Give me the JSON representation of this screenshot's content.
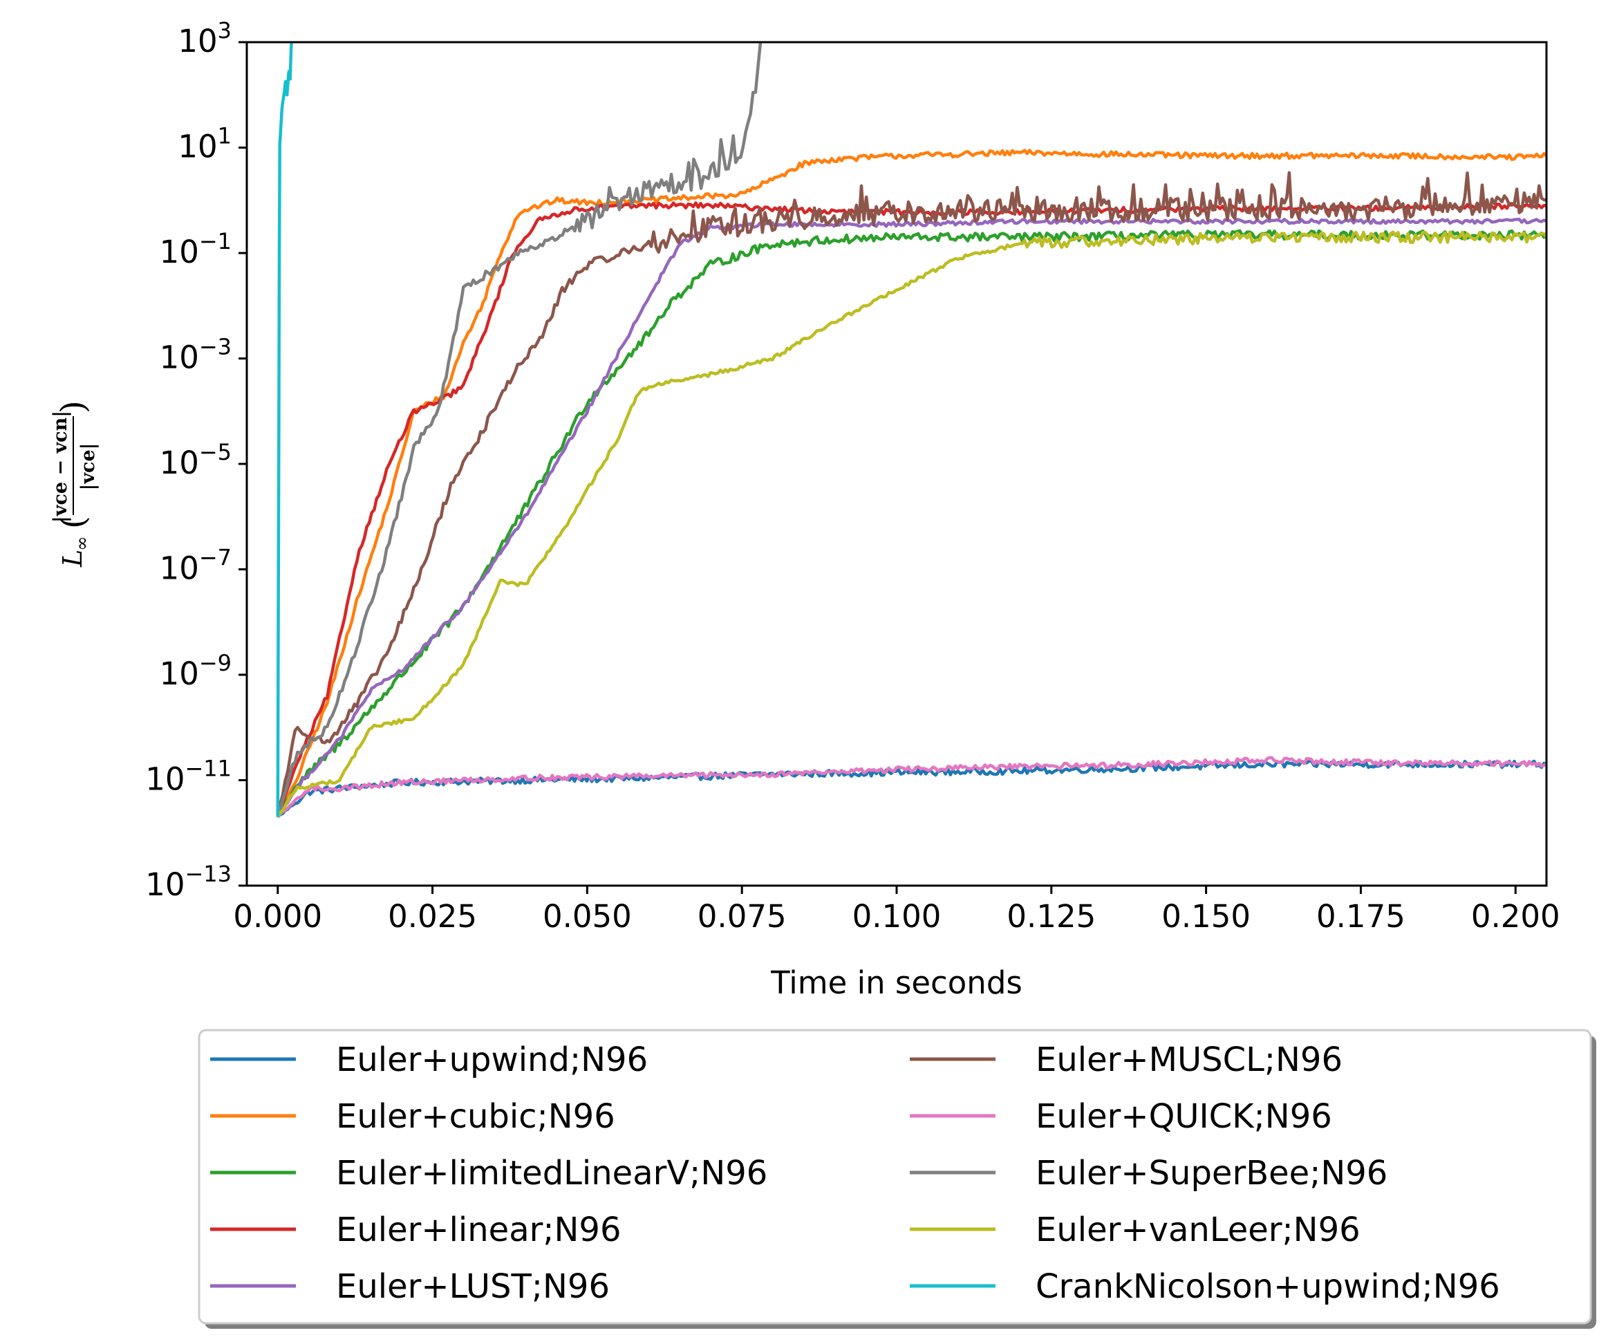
{
  "chart_data": {
    "type": "line",
    "xlabel": "Time in seconds",
    "ylabel": "L∞(|v_c^e − v_c^n| / |v_c^e|)",
    "ylabel_parts": {
      "main": "L",
      "sub": "∞",
      "lparen": "(",
      "numerator": "|vce − vcn|",
      "denominator": "|vce|",
      "rparen": ")"
    },
    "xlim": [
      -0.005,
      0.205
    ],
    "ylim_log10": [
      -13,
      3
    ],
    "yscale": "log",
    "grid": false,
    "legend_position": "below plot, two columns",
    "x_ticks": [
      "0.000",
      "0.025",
      "0.050",
      "0.075",
      "0.100",
      "0.125",
      "0.150",
      "0.175",
      "0.200"
    ],
    "x_tick_values": [
      0,
      0.025,
      0.05,
      0.075,
      0.1,
      0.125,
      0.15,
      0.175,
      0.2
    ],
    "y_ticks": [
      {
        "base": "10",
        "exp": "3",
        "value": 1000.0
      },
      {
        "base": "10",
        "exp": "1",
        "value": 10.0
      },
      {
        "base": "10",
        "exp": "−1",
        "value": 0.1
      },
      {
        "base": "10",
        "exp": "−3",
        "value": 0.001
      },
      {
        "base": "10",
        "exp": "−5",
        "value": 1e-05
      },
      {
        "base": "10",
        "exp": "−7",
        "value": 1e-07
      },
      {
        "base": "10",
        "exp": "−9",
        "value": 1e-09
      },
      {
        "base": "10",
        "exp": "−11",
        "value": 1e-11
      },
      {
        "base": "10",
        "exp": "−13",
        "value": 1e-13
      }
    ],
    "series": [
      {
        "name": "Euler+upwind;N96",
        "color": "#1f77b4",
        "noise": 0.06,
        "x": [
          0,
          0.005,
          0.01,
          0.02,
          0.04,
          0.06,
          0.08,
          0.1,
          0.12,
          0.14,
          0.16,
          0.18,
          0.2,
          0.205
        ],
        "y": [
          2e-12,
          6e-12,
          7e-12,
          9e-12,
          1e-11,
          1.1e-11,
          1.3e-11,
          1.4e-11,
          1.5e-11,
          1.7e-11,
          2e-11,
          2e-11,
          2e-11,
          2e-11
        ]
      },
      {
        "name": "Euler+cubic;N96",
        "color": "#ff7f0e",
        "noise": 0.05,
        "x": [
          0,
          0.003,
          0.008,
          0.013,
          0.018,
          0.022,
          0.027,
          0.03,
          0.033,
          0.036,
          0.039,
          0.045,
          0.05,
          0.06,
          0.07,
          0.075,
          0.08,
          0.085,
          0.09,
          0.1,
          0.12,
          0.15,
          0.18,
          0.2,
          0.205
        ],
        "y": [
          2e-12,
          1e-11,
          3e-10,
          3e-08,
          2e-06,
          0.0001,
          0.0002,
          0.002,
          0.01,
          0.1,
          0.6,
          1.0,
          0.9,
          1.0,
          1.2,
          1.3,
          2.5,
          5,
          6,
          7,
          8,
          7,
          7,
          6.5,
          7
        ]
      },
      {
        "name": "Euler+limitedLinearV;N96",
        "color": "#2ca02c",
        "noise": 0.08,
        "x": [
          0,
          0.003,
          0.01,
          0.02,
          0.03,
          0.04,
          0.05,
          0.06,
          0.063,
          0.07,
          0.08,
          0.09,
          0.1,
          0.12,
          0.15,
          0.18,
          0.2,
          0.205
        ],
        "y": [
          2e-12,
          8e-12,
          5e-11,
          1e-09,
          2e-08,
          1.5e-06,
          0.00015,
          0.003,
          0.01,
          0.06,
          0.15,
          0.18,
          0.2,
          0.2,
          0.22,
          0.22,
          0.22,
          0.22
        ]
      },
      {
        "name": "Euler+linear;N96",
        "color": "#d62728",
        "noise": 0.05,
        "x": [
          0,
          0.003,
          0.008,
          0.013,
          0.018,
          0.022,
          0.026,
          0.03,
          0.035,
          0.038,
          0.042,
          0.046,
          0.05,
          0.06,
          0.07,
          0.08,
          0.09,
          0.1,
          0.12,
          0.15,
          0.18,
          0.2,
          0.205
        ],
        "y": [
          2e-12,
          2e-11,
          4e-10,
          2e-07,
          1e-05,
          0.0001,
          0.00015,
          0.0003,
          0.01,
          0.1,
          0.4,
          0.6,
          0.7,
          0.8,
          0.8,
          0.7,
          0.6,
          0.6,
          0.6,
          0.7,
          0.7,
          0.8,
          0.8
        ]
      },
      {
        "name": "Euler+LUST;N96",
        "color": "#9467bd",
        "noise": 0.04,
        "x": [
          0,
          0.003,
          0.01,
          0.015,
          0.02,
          0.03,
          0.04,
          0.05,
          0.06,
          0.065,
          0.07,
          0.08,
          0.1,
          0.12,
          0.15,
          0.18,
          0.2,
          0.205
        ],
        "y": [
          2e-12,
          7e-12,
          6e-11,
          5e-10,
          1.2e-09,
          2e-08,
          1e-06,
          0.0001,
          0.015,
          0.15,
          0.3,
          0.35,
          0.35,
          0.4,
          0.4,
          0.4,
          0.4,
          0.4
        ]
      },
      {
        "name": "Euler+MUSCL;N96",
        "color": "#8c564b",
        "noise": 0.22,
        "noise_start": 0.06,
        "x": [
          0,
          0.003,
          0.008,
          0.013,
          0.018,
          0.023,
          0.028,
          0.033,
          0.038,
          0.043,
          0.046,
          0.05,
          0.06,
          0.07,
          0.08,
          0.1,
          0.12,
          0.15,
          0.18,
          0.2,
          0.205
        ],
        "y": [
          2e-12,
          1e-10,
          5e-11,
          3e-10,
          3e-09,
          8e-08,
          4e-06,
          4e-05,
          0.0005,
          0.003,
          0.02,
          0.06,
          0.15,
          0.3,
          0.4,
          0.6,
          0.6,
          0.7,
          0.7,
          0.8,
          1
        ]
      },
      {
        "name": "Euler+QUICK;N96",
        "color": "#e377c2",
        "noise": 0.05,
        "x": [
          0,
          0.005,
          0.01,
          0.02,
          0.04,
          0.06,
          0.08,
          0.1,
          0.12,
          0.14,
          0.16,
          0.18,
          0.2,
          0.205
        ],
        "y": [
          2e-12,
          7e-12,
          7e-12,
          9e-12,
          1.1e-11,
          1.2e-11,
          1.3e-11,
          1.6e-11,
          1.8e-11,
          2e-11,
          2.4e-11,
          2.1e-11,
          2.1e-11,
          2e-11
        ]
      },
      {
        "name": "Euler+SuperBee;N96",
        "color": "#7f7f7f",
        "noise": 0.2,
        "noise_start": 0.048,
        "x": [
          0,
          0.003,
          0.008,
          0.013,
          0.018,
          0.022,
          0.026,
          0.03,
          0.035,
          0.04,
          0.045,
          0.05,
          0.055,
          0.06,
          0.065,
          0.07,
          0.075,
          0.077,
          0.078
        ],
        "y": [
          2e-12,
          3e-11,
          1e-10,
          4e-09,
          3e-07,
          2e-05,
          0.0001,
          0.02,
          0.05,
          0.12,
          0.2,
          0.4,
          1,
          1.5,
          2,
          3,
          10,
          100,
          1000
        ]
      },
      {
        "name": "Euler+vanLeer;N96",
        "color": "#bcbd22",
        "noise": 0.1,
        "noise_start": 0.12,
        "x": [
          0,
          0.003,
          0.01,
          0.015,
          0.022,
          0.03,
          0.036,
          0.04,
          0.047,
          0.052,
          0.055,
          0.058,
          0.06,
          0.07,
          0.08,
          0.09,
          0.1,
          0.11,
          0.12,
          0.14,
          0.16,
          0.18,
          0.2,
          0.205
        ],
        "y": [
          2e-12,
          7e-12,
          1e-11,
          1e-10,
          1.5e-10,
          1.5e-09,
          6e-08,
          5e-08,
          8e-07,
          8e-06,
          3e-05,
          0.0002,
          0.0003,
          0.0005,
          0.001,
          0.005,
          0.02,
          0.08,
          0.15,
          0.18,
          0.2,
          0.2,
          0.2,
          0.2
        ]
      },
      {
        "name": "CrankNicolson+upwind;N96",
        "color": "#17becf",
        "noise": 0,
        "x": [
          0,
          0.0003,
          0.0007,
          0.001,
          0.0013,
          0.0015,
          0.0018,
          0.002,
          0.0022,
          0.0025
        ],
        "y": [
          2e-12,
          10.0,
          60.0,
          100.0,
          200.0,
          100.0,
          300.0,
          200.0,
          1000.0,
          2000.0
        ]
      }
    ]
  }
}
